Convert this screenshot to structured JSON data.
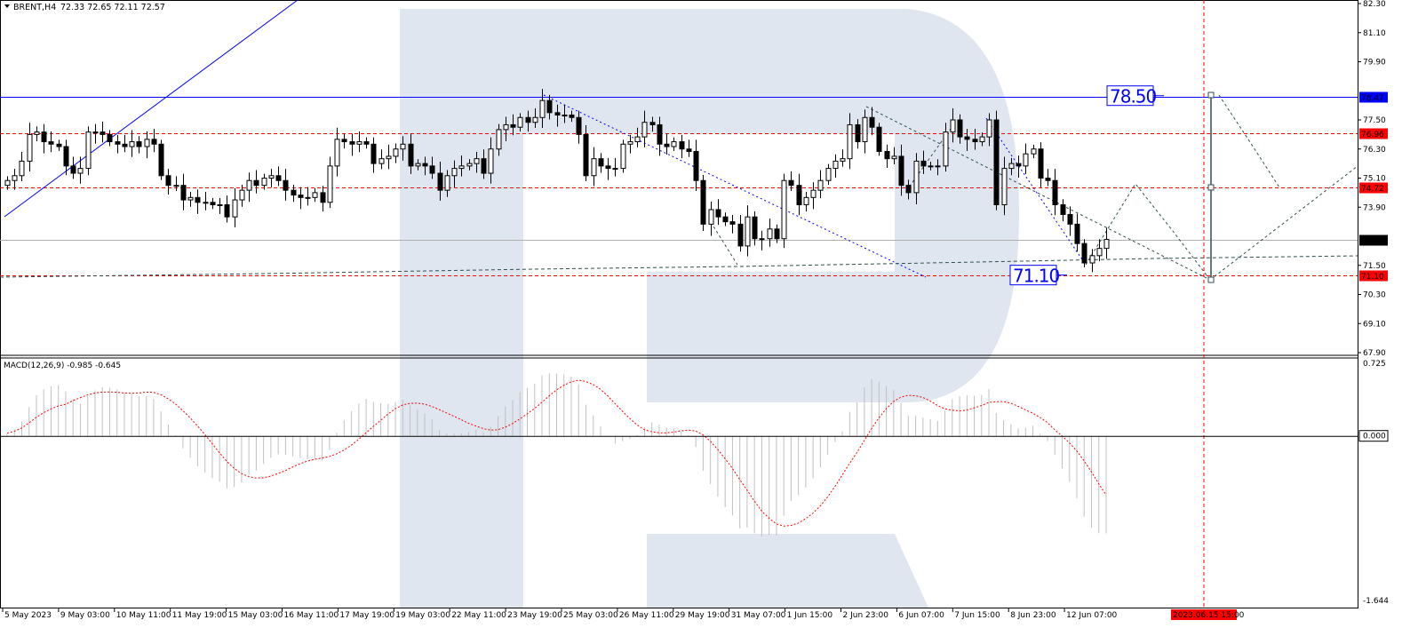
{
  "header": {
    "symbol_timeframe": "BRENT,H4",
    "ohlc": "72.33 72.65 72.11 72.57"
  },
  "macd_header": "MACD(12,26,9) -0.985 -0.645",
  "colors": {
    "bull_body": "#ffffff",
    "bear_body": "#000000",
    "level": "#ff0000",
    "trend": "#0000ff",
    "forecast": "#2f4f4f",
    "watermark": "#dfe6ef",
    "macd_hist": "#c0c0c0",
    "macd_signal": "#ff0000"
  },
  "chart_data": {
    "type": "candlestick",
    "symbol": "BRENT",
    "timeframe": "H4",
    "ylim": [
      67.9,
      82.3
    ],
    "price_ticks": [
      "82.30",
      "81.10",
      "79.90",
      "77.50",
      "76.30",
      "75.10",
      "73.90",
      "71.50",
      "70.30",
      "69.10",
      "67.90"
    ],
    "time_ticks": [
      "5 May 2023",
      "9 May 03:00",
      "10 May 11:00",
      "11 May 19:00",
      "15 May 03:00",
      "16 May 11:00",
      "17 May 19:00",
      "19 May 03:00",
      "22 May 11:00",
      "23 May 19:00",
      "25 May 03:00",
      "26 May 11:00",
      "29 May 19:00",
      "31 May 07:00",
      "1 Jun 15:00",
      "2 Jun 23:00",
      "6 Jun 07:00",
      "7 Jun 15:00",
      "8 Jun 23:00",
      "12 Jun 07:00"
    ],
    "forecast_time_label": "2023.06.15 15:00",
    "closes": [
      75.0,
      75.2,
      75.8,
      76.9,
      77.0,
      76.6,
      76.5,
      76.4,
      75.6,
      75.3,
      75.5,
      77.0,
      77.0,
      76.9,
      76.6,
      76.5,
      76.4,
      76.6,
      76.4,
      76.7,
      76.5,
      75.2,
      74.8,
      74.8,
      74.2,
      74.3,
      74.1,
      74.1,
      74.0,
      74.0,
      73.5,
      74.2,
      74.6,
      75.0,
      74.8,
      75.1,
      75.2,
      75.0,
      74.6,
      74.4,
      74.3,
      74.3,
      74.5,
      74.1,
      75.6,
      76.7,
      76.6,
      76.5,
      76.6,
      76.5,
      75.7,
      75.9,
      76.0,
      76.3,
      76.5,
      75.6,
      75.7,
      75.6,
      75.3,
      74.6,
      75.2,
      75.5,
      75.6,
      75.7,
      75.9,
      75.3,
      76.3,
      77.1,
      77.3,
      77.2,
      77.6,
      77.4,
      77.6,
      78.3,
      77.8,
      77.7,
      77.7,
      77.6,
      76.9,
      75.2,
      75.9,
      75.6,
      75.5,
      75.5,
      76.5,
      76.6,
      76.8,
      77.4,
      77.3,
      76.5,
      76.4,
      76.6,
      76.3,
      76.2,
      75.0,
      73.2,
      73.8,
      73.5,
      73.3,
      73.2,
      72.3,
      73.5,
      72.6,
      72.6,
      73.0,
      72.6,
      75.0,
      74.8,
      74.0,
      74.3,
      74.6,
      75.0,
      75.5,
      75.8,
      75.9,
      77.3,
      76.6,
      77.6,
      77.2,
      76.2,
      75.9,
      76.0,
      74.8,
      74.5,
      75.8,
      75.6,
      75.6,
      75.6,
      77.0,
      77.5,
      76.8,
      76.7,
      76.6,
      76.8,
      77.5,
      74.0,
      75.5,
      75.7,
      75.6,
      76.1,
      76.3,
      75.1,
      75.0,
      74.0,
      73.6,
      73.2,
      72.4,
      71.6,
      71.9,
      72.2,
      72.57
    ],
    "levels": [
      {
        "price": 78.47,
        "label": "78.47",
        "style": "solid-blue"
      },
      {
        "price": 76.96,
        "label": "76.96",
        "style": "dashed-red"
      },
      {
        "price": 74.72,
        "label": "74.72",
        "style": "dashed-red"
      },
      {
        "price": 72.57,
        "label": "72.57",
        "style": "current-price"
      },
      {
        "price": 71.1,
        "label": "71.10",
        "style": "dashed-red"
      }
    ],
    "targets": [
      {
        "label": "78.50",
        "price": 78.5
      },
      {
        "label": "71.10",
        "price": 71.1
      }
    ],
    "macd": {
      "params": "12,26,9",
      "ticks": [
        "0.725",
        "0.000",
        "-1.644"
      ],
      "ylim": [
        -1.644,
        0.725
      ]
    }
  }
}
